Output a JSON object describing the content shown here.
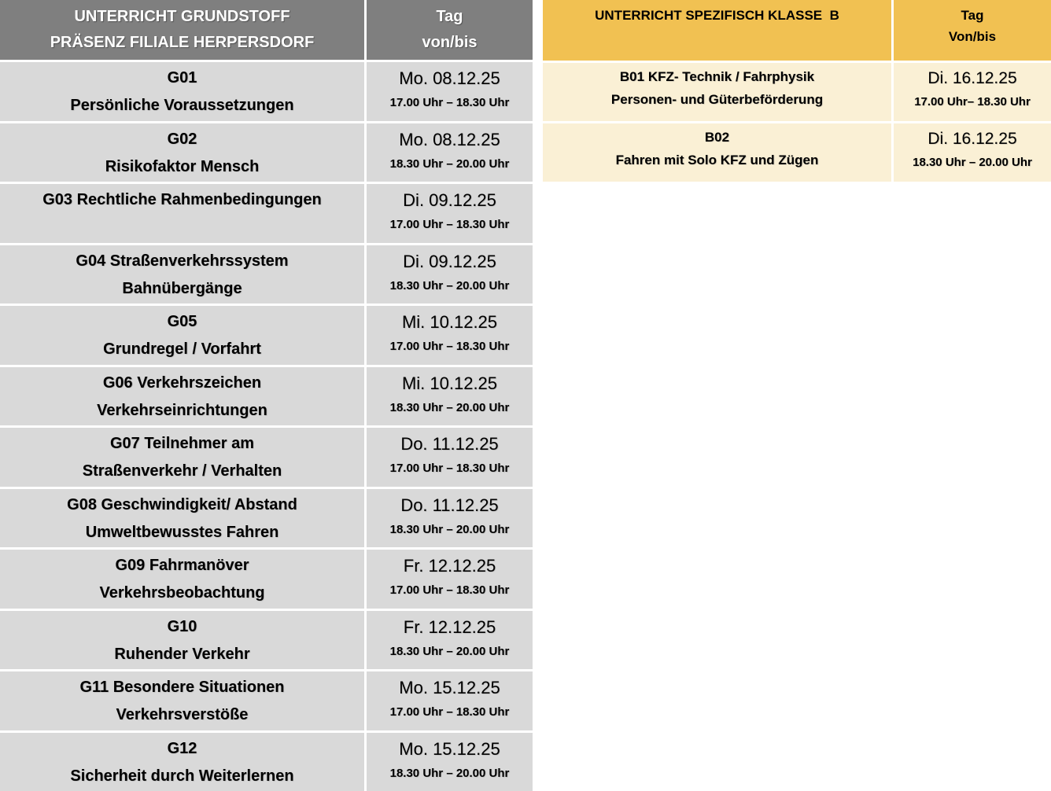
{
  "colors": {
    "left_header_bg": "#7F7F7F",
    "left_header_text": "#FFFFFF",
    "left_row_bg": "#D9D9D9",
    "right_header_bg": "#F1C152",
    "right_row_bg": "#FAF0D5",
    "body_text": "#000000",
    "grid_gap": "#FFFFFF"
  },
  "left_table": {
    "header": {
      "title_line1": "UNTERRICHT GRUNDSTOFF",
      "title_line2": "PRÄSENZ FILIALE HERPERSDORF",
      "tag_line1": "Tag",
      "tag_line2": "von/bis"
    },
    "rows": [
      {
        "title_line1": "G01",
        "title_line2": "Persönliche Voraussetzungen",
        "date": "Mo. 08.12.25",
        "time": "17.00 Uhr – 18.30 Uhr"
      },
      {
        "title_line1": "G02",
        "title_line2": "Risikofaktor Mensch",
        "date": "Mo. 08.12.25",
        "time": "18.30 Uhr – 20.00 Uhr"
      },
      {
        "title_line1": "G03 Rechtliche Rahmenbedingungen",
        "title_line2": "",
        "date": "Di. 09.12.25",
        "time": "17.00 Uhr – 18.30 Uhr"
      },
      {
        "title_line1": "G04 Straßenverkehrssystem",
        "title_line2": "Bahnübergänge",
        "date": "Di. 09.12.25",
        "time": "18.30 Uhr – 20.00 Uhr"
      },
      {
        "title_line1": "G05",
        "title_line2": "Grundregel / Vorfahrt",
        "date": "Mi. 10.12.25",
        "time": "17.00 Uhr – 18.30 Uhr"
      },
      {
        "title_line1": "G06 Verkehrszeichen",
        "title_line2": "Verkehrseinrichtungen",
        "date": "Mi. 10.12.25",
        "time": "18.30 Uhr – 20.00 Uhr"
      },
      {
        "title_line1": "G07 Teilnehmer am",
        "title_line2": "Straßenverkehr / Verhalten",
        "date": "Do. 11.12.25",
        "time": "17.00 Uhr – 18.30 Uhr"
      },
      {
        "title_line1": "G08 Geschwindigkeit/ Abstand",
        "title_line2": "Umweltbewusstes Fahren",
        "date": "Do. 11.12.25",
        "time": "18.30 Uhr – 20.00 Uhr"
      },
      {
        "title_line1": "G09 Fahrmanöver",
        "title_line2": "Verkehrsbeobachtung",
        "date": "Fr. 12.12.25",
        "time": "17.00 Uhr – 18.30 Uhr"
      },
      {
        "title_line1": "G10",
        "title_line2": "Ruhender Verkehr",
        "date": "Fr. 12.12.25",
        "time": "18.30 Uhr – 20.00 Uhr"
      },
      {
        "title_line1": "G11 Besondere Situationen",
        "title_line2": "Verkehrsverstöße",
        "date": "Mo. 15.12.25",
        "time": "17.00 Uhr – 18.30 Uhr"
      },
      {
        "title_line1": "G12",
        "title_line2": "Sicherheit durch Weiterlernen",
        "date": "Mo. 15.12.25",
        "time": "18.30 Uhr – 20.00 Uhr"
      }
    ]
  },
  "right_table": {
    "header": {
      "title": "UNTERRICHT SPEZIFISCH KLASSE  B",
      "tag_line1": "Tag",
      "tag_line2": "Von/bis"
    },
    "rows": [
      {
        "title_line1": "B01 KFZ- Technik / Fahrphysik",
        "title_line2": "Personen- und Güterbeförderung",
        "date": "Di. 16.12.25",
        "time": "17.00 Uhr– 18.30 Uhr"
      },
      {
        "title_line1": "B02",
        "title_line2": "Fahren mit Solo KFZ und Zügen",
        "date": "Di. 16.12.25",
        "time": "18.30 Uhr – 20.00 Uhr"
      }
    ]
  }
}
